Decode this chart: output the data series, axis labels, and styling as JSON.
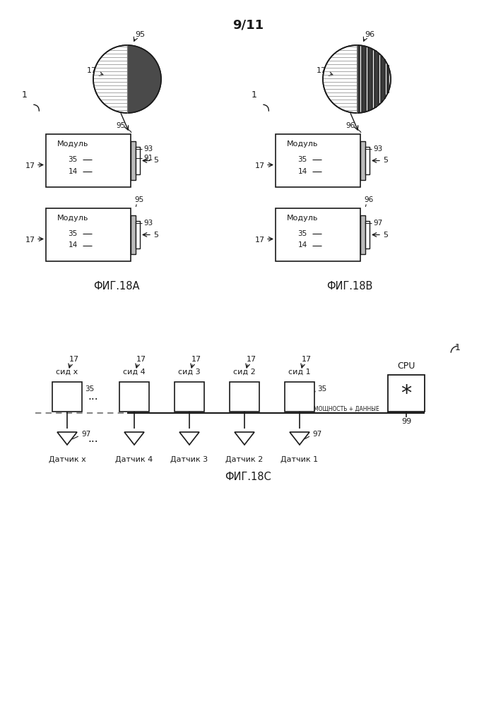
{
  "page_label": "9/11",
  "fig18a_label": "ФИГ.18А",
  "fig18b_label": "ФИГ.18В",
  "fig18c_label": "ФИГ.18С",
  "bg_color": "#ffffff",
  "lc": "#1a1a1a",
  "module_text": "Модуль",
  "cpu_text": "CPU",
  "power_data_text": "МОЩНОСТЬ + ДАННЫЕ",
  "sid_labels": [
    "сид x",
    "сид 4",
    "сид 3",
    "сид 2",
    "сид 1"
  ],
  "sensor_labels": [
    "Датчик x",
    "Датчик 4",
    "Датчик 3",
    "Датчик 2",
    "Датчик 1"
  ]
}
